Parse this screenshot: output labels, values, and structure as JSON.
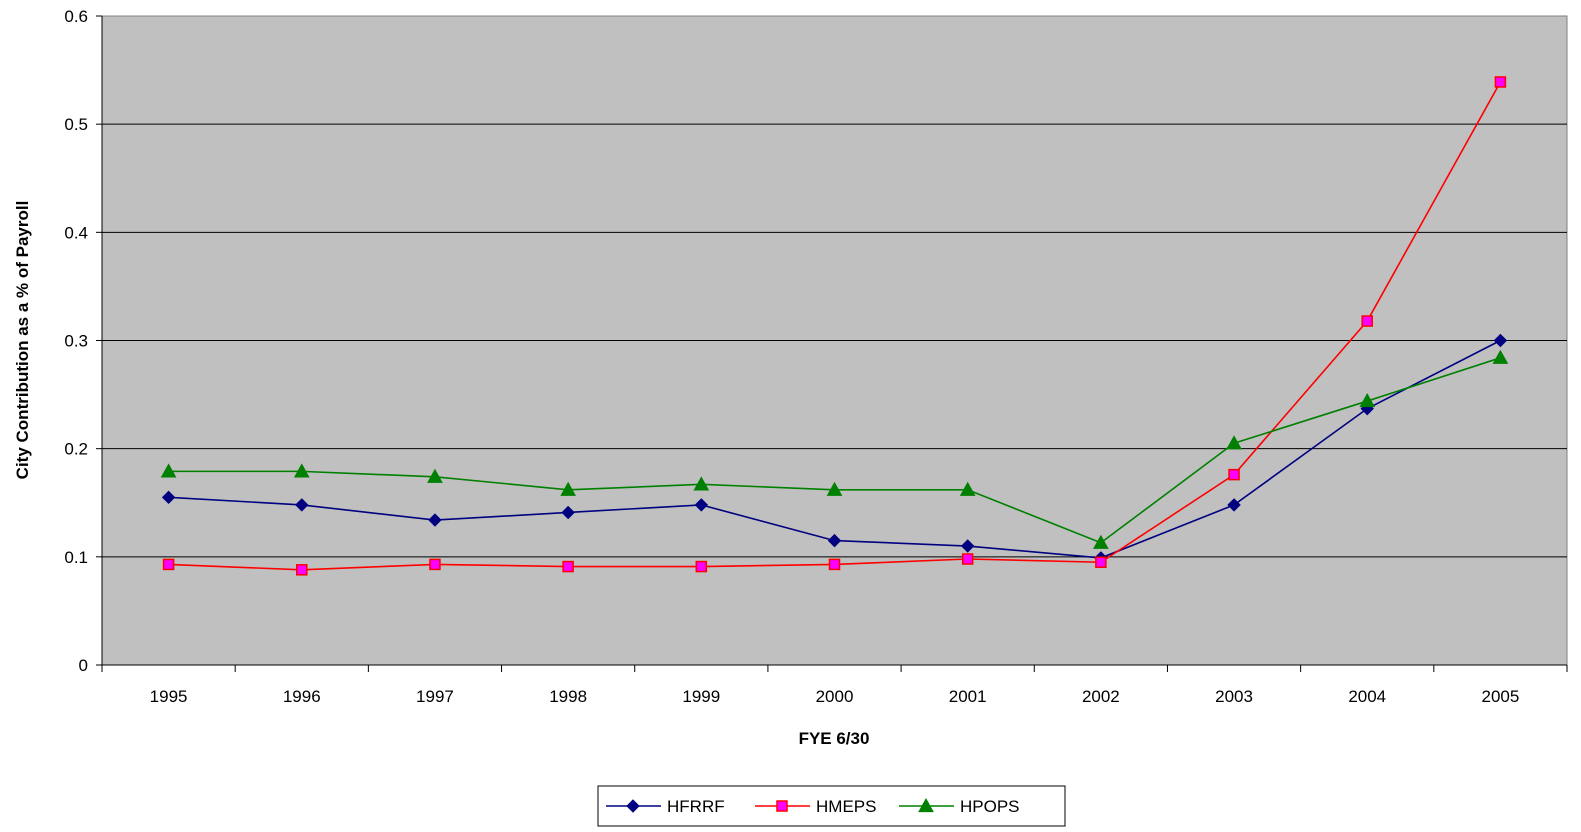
{
  "chart_data": {
    "type": "line",
    "title": "",
    "xlabel": "FYE 6/30",
    "ylabel": "City Contribution as a % of Payroll",
    "categories": [
      "1995",
      "1996",
      "1997",
      "1998",
      "1999",
      "2000",
      "2001",
      "2002",
      "2003",
      "2004",
      "2005"
    ],
    "ylim": [
      0,
      0.6
    ],
    "yticks": [
      0,
      0.1,
      0.2,
      0.3,
      0.4,
      0.5,
      0.6
    ],
    "ytick_labels": [
      "0",
      "0.1",
      "0.2",
      "0.3",
      "0.4",
      "0.5",
      "0.6"
    ],
    "grid": "horizontal",
    "plot_background": "#c0c0c0",
    "legend_position": "bottom",
    "series": [
      {
        "name": "HFRRF",
        "color": "#000080",
        "marker": "diamond",
        "values": [
          0.155,
          0.148,
          0.134,
          0.141,
          0.148,
          0.115,
          0.11,
          0.099,
          0.148,
          0.237,
          0.3
        ]
      },
      {
        "name": "HMEPS",
        "color": "#ff0000",
        "marker": "square",
        "marker_fill": "#ff00ff",
        "values": [
          0.093,
          0.088,
          0.093,
          0.091,
          0.091,
          0.093,
          0.098,
          0.095,
          0.176,
          0.318,
          0.539
        ]
      },
      {
        "name": "HPOPS",
        "color": "#008000",
        "marker": "triangle",
        "values": [
          0.179,
          0.179,
          0.174,
          0.162,
          0.167,
          0.162,
          0.162,
          0.113,
          0.205,
          0.244,
          0.284
        ]
      }
    ]
  }
}
